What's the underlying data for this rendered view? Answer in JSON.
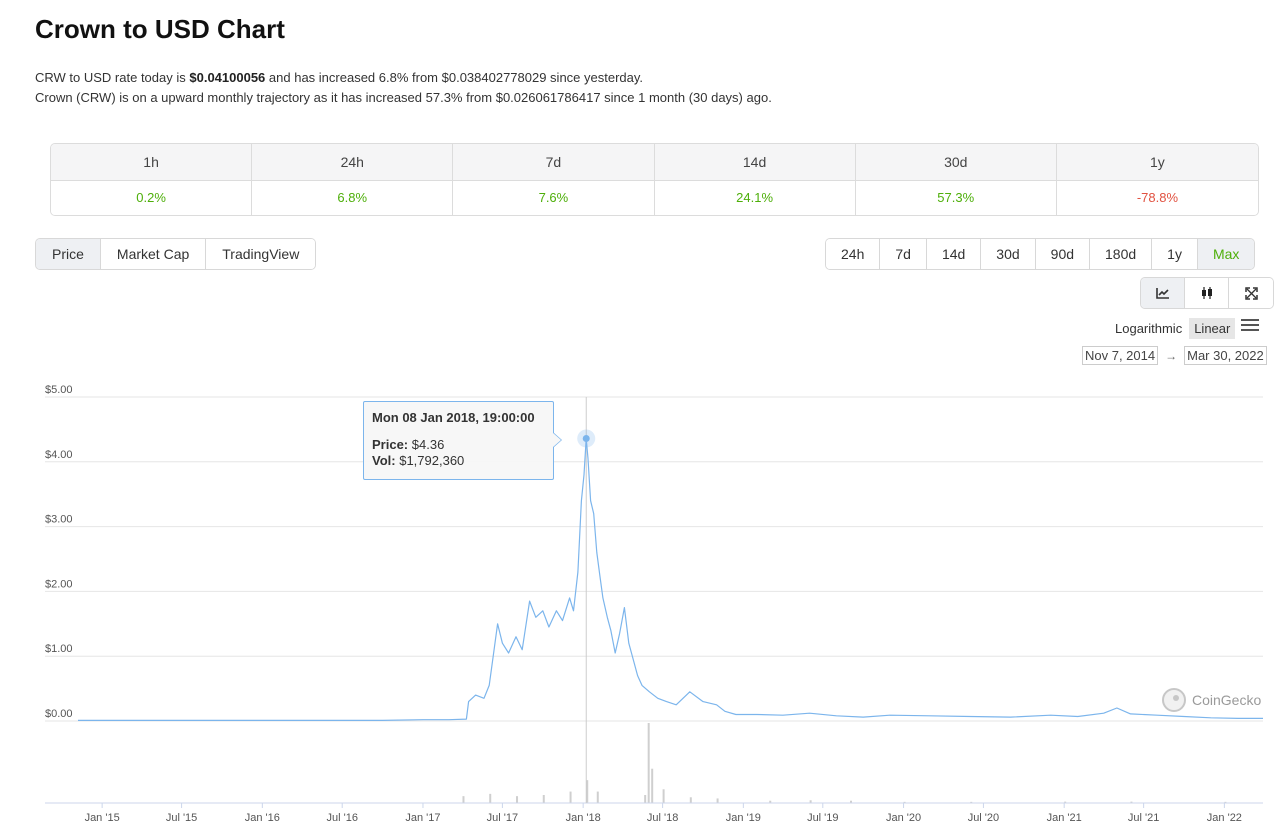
{
  "page": {
    "title": "Crown to USD Chart",
    "desc_line1": {
      "prefix": "CRW to USD rate today is ",
      "rate": "$0.04100056",
      "suffix": " and has increased 6.8% from $0.038402778029 since yesterday."
    },
    "desc_line2": "Crown (CRW) is on a upward monthly trajectory as it has increased 57.3% from $0.026061786417 since 1 month (30 days) ago."
  },
  "performance": [
    {
      "period": "1h",
      "change": "0.2%",
      "direction": "up"
    },
    {
      "period": "24h",
      "change": "6.8%",
      "direction": "up"
    },
    {
      "period": "7d",
      "change": "7.6%",
      "direction": "up"
    },
    {
      "period": "14d",
      "change": "24.1%",
      "direction": "up"
    },
    {
      "period": "30d",
      "change": "57.3%",
      "direction": "up"
    },
    {
      "period": "1y",
      "change": "-78.8%",
      "direction": "down"
    }
  ],
  "tabs": [
    "Price",
    "Market Cap",
    "TradingView"
  ],
  "active_tab": "Price",
  "ranges": [
    "24h",
    "7d",
    "14d",
    "30d",
    "90d",
    "180d",
    "1y",
    "Max"
  ],
  "active_range": "Max",
  "chart_types": [
    {
      "name": "line-chart-icon",
      "active": true
    },
    {
      "name": "candlestick-icon",
      "active": false
    },
    {
      "name": "expand-icon",
      "active": false
    }
  ],
  "scale": {
    "options": [
      "Logarithmic",
      "Linear"
    ],
    "selected": "Linear"
  },
  "date_range": {
    "from": "Nov 7, 2014",
    "arrow": "→",
    "to": "Mar 30, 2022"
  },
  "tooltip": {
    "date": "Mon 08 Jan 2018, 19:00:00",
    "price_label": "Price:",
    "price": "$4.36",
    "vol_label": "Vol:",
    "vol": "$1,792,360"
  },
  "credit": "CoinGecko",
  "colors": {
    "line": "#7cb5ec",
    "up": "#4eaf0a",
    "down": "#e15241",
    "volume": "#cfcfcf"
  },
  "chart_data": {
    "type": "line",
    "title": "",
    "xlabel": "",
    "ylabel": "",
    "ylim": [
      0,
      5
    ],
    "yticks": [
      "$0.00",
      "$1.00",
      "$2.00",
      "$3.00",
      "$4.00",
      "$5.00"
    ],
    "ytick_values": [
      0,
      1,
      2,
      3,
      4,
      5
    ],
    "xlim": [
      "2014-11-07",
      "2022-03-30"
    ],
    "xticks": [
      {
        "label": "Jan '15",
        "date": "2015-01-01"
      },
      {
        "label": "Jul '15",
        "date": "2015-07-01"
      },
      {
        "label": "Jan '16",
        "date": "2016-01-01"
      },
      {
        "label": "Jul '16",
        "date": "2016-07-01"
      },
      {
        "label": "Jan '17",
        "date": "2017-01-01"
      },
      {
        "label": "Jul '17",
        "date": "2017-07-01"
      },
      {
        "label": "Jan '18",
        "date": "2018-01-01"
      },
      {
        "label": "Jul '18",
        "date": "2018-07-01"
      },
      {
        "label": "Jan '19",
        "date": "2019-01-01"
      },
      {
        "label": "Jul '19",
        "date": "2019-07-01"
      },
      {
        "label": "Jan '20",
        "date": "2020-01-01"
      },
      {
        "label": "Jul '20",
        "date": "2020-07-01"
      },
      {
        "label": "Jan '21",
        "date": "2021-01-01"
      },
      {
        "label": "Jul '21",
        "date": "2021-07-01"
      },
      {
        "label": "Jan '22",
        "date": "2022-01-01"
      }
    ],
    "grid": true,
    "legend": "none",
    "highlight": {
      "date": "2018-01-08",
      "price": 4.36
    },
    "series": [
      {
        "x": [
          "2014-11-07",
          "2015-06-01",
          "2016-01-01",
          "2016-06-01",
          "2016-10-01",
          "2017-01-01",
          "2017-03-01",
          "2017-04-10",
          "2017-04-15",
          "2017-05-01",
          "2017-05-20",
          "2017-06-01",
          "2017-06-10",
          "2017-06-20",
          "2017-07-01",
          "2017-07-15",
          "2017-08-01",
          "2017-08-15",
          "2017-09-01",
          "2017-09-15",
          "2017-10-01",
          "2017-10-15",
          "2017-11-01",
          "2017-11-15",
          "2017-12-01",
          "2017-12-10",
          "2017-12-20",
          "2017-12-28",
          "2018-01-03",
          "2018-01-08",
          "2018-01-12",
          "2018-01-18",
          "2018-01-25",
          "2018-02-01",
          "2018-02-08",
          "2018-02-15",
          "2018-02-25",
          "2018-03-05",
          "2018-03-15",
          "2018-03-25",
          "2018-04-05",
          "2018-04-15",
          "2018-04-25",
          "2018-05-05",
          "2018-05-15",
          "2018-06-01",
          "2018-06-20",
          "2018-07-10",
          "2018-08-01",
          "2018-09-01",
          "2018-10-01",
          "2018-11-01",
          "2018-11-20",
          "2018-12-15",
          "2019-02-01",
          "2019-04-01",
          "2019-06-01",
          "2019-08-01",
          "2019-10-01",
          "2019-12-01",
          "2020-03-01",
          "2020-06-01",
          "2020-09-01",
          "2020-12-01",
          "2021-02-01",
          "2021-04-01",
          "2021-05-01",
          "2021-06-01",
          "2021-08-01",
          "2021-10-01",
          "2021-12-01",
          "2022-02-01",
          "2022-03-30"
        ],
        "values": [
          0.01,
          0.01,
          0.01,
          0.01,
          0.01,
          0.02,
          0.02,
          0.03,
          0.3,
          0.4,
          0.35,
          0.55,
          1.0,
          1.5,
          1.2,
          1.05,
          1.3,
          1.1,
          1.85,
          1.6,
          1.7,
          1.45,
          1.7,
          1.55,
          1.9,
          1.7,
          2.3,
          3.4,
          3.8,
          4.36,
          4.05,
          3.4,
          3.2,
          2.6,
          2.25,
          1.9,
          1.6,
          1.4,
          1.05,
          1.35,
          1.75,
          1.2,
          0.95,
          0.7,
          0.55,
          0.45,
          0.35,
          0.3,
          0.25,
          0.45,
          0.3,
          0.25,
          0.15,
          0.1,
          0.1,
          0.09,
          0.12,
          0.08,
          0.06,
          0.09,
          0.08,
          0.07,
          0.06,
          0.09,
          0.07,
          0.12,
          0.2,
          0.11,
          0.09,
          0.07,
          0.05,
          0.04,
          0.04
        ]
      }
    ],
    "volume": {
      "x": [
        "2017-04-01",
        "2017-06-01",
        "2017-08-01",
        "2017-10-01",
        "2017-12-01",
        "2018-01-08",
        "2018-02-01",
        "2018-05-20",
        "2018-05-28",
        "2018-06-05",
        "2018-07-01",
        "2018-09-01",
        "2018-11-01",
        "2019-03-01",
        "2019-06-01",
        "2019-09-01",
        "2020-01-01",
        "2020-06-01",
        "2021-01-01",
        "2021-06-01",
        "2022-01-01"
      ],
      "values": [
        0.3,
        0.4,
        0.3,
        0.35,
        0.5,
        1.0,
        0.5,
        0.35,
        3.5,
        1.5,
        0.6,
        0.25,
        0.2,
        0.1,
        0.12,
        0.1,
        0.05,
        0.05,
        0.06,
        0.06,
        0.05
      ]
    }
  }
}
